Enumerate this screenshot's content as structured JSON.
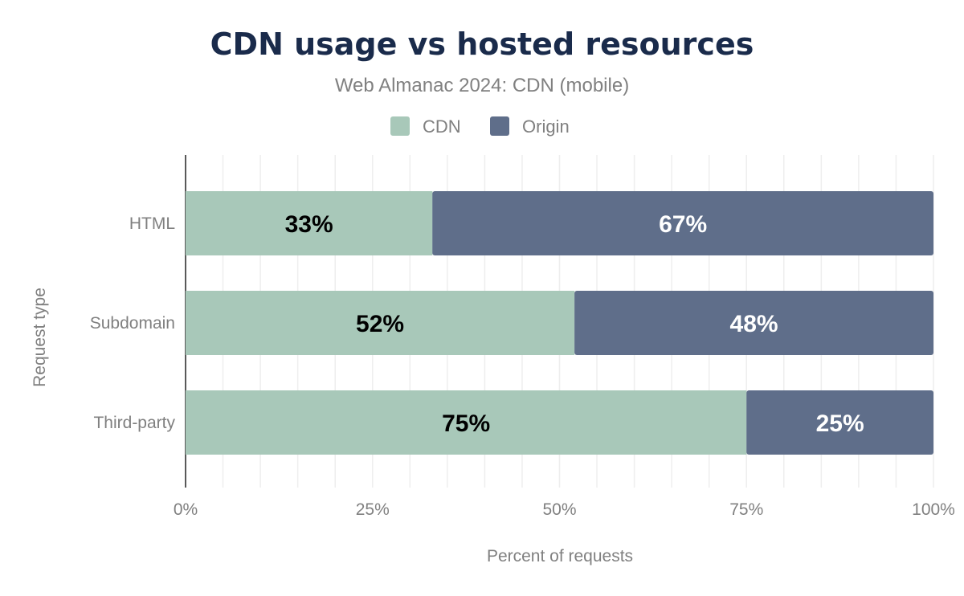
{
  "chart_data": {
    "type": "bar",
    "orientation": "horizontal",
    "stacked": true,
    "title": "CDN usage vs hosted resources",
    "subtitle": "Web Almanac 2024: CDN (mobile)",
    "xlabel": "Percent of requests",
    "ylabel": "Request type",
    "xlim": [
      0,
      100
    ],
    "x_ticks": [
      "0%",
      "25%",
      "50%",
      "75%",
      "100%"
    ],
    "grid": true,
    "legend_placement": "top",
    "categories": [
      "HTML",
      "Subdomain",
      "Third-party"
    ],
    "series": [
      {
        "name": "CDN",
        "color": "#a8c8b9",
        "label_color": "#000000",
        "values": [
          33,
          52,
          75
        ],
        "labels": [
          "33%",
          "52%",
          "75%"
        ]
      },
      {
        "name": "Origin",
        "color": "#5f6e8a",
        "label_color": "#ffffff",
        "values": [
          67,
          48,
          25
        ],
        "labels": [
          "67%",
          "48%",
          "25%"
        ]
      }
    ]
  },
  "colors": {
    "title": "#1a2b4b",
    "muted": "#808080",
    "grid": "#eeeeee",
    "axis": "#222222"
  }
}
